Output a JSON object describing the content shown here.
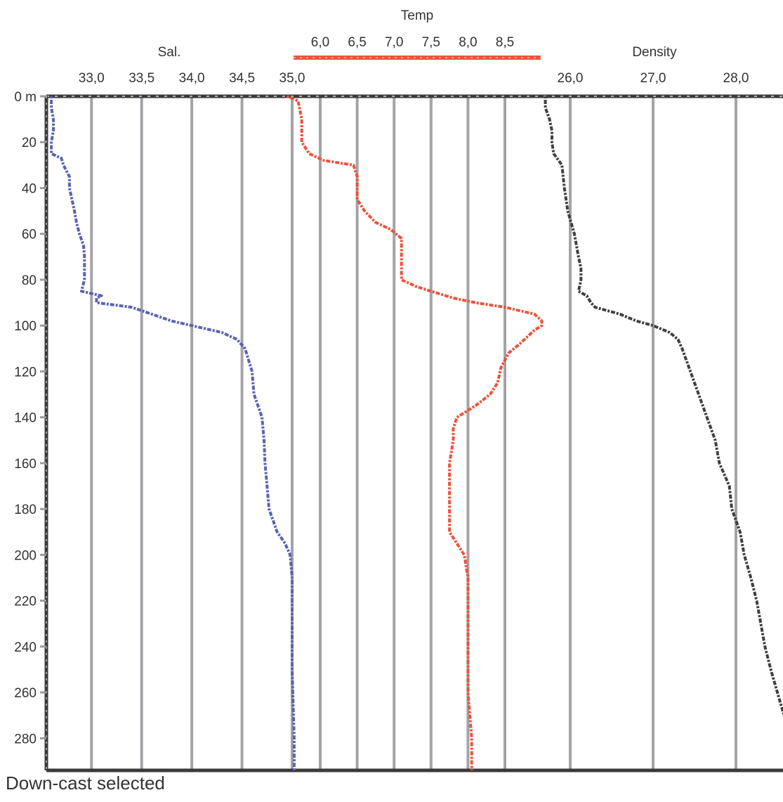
{
  "chart_data": {
    "type": "line",
    "description_status": "ctd-profile",
    "y_axis": {
      "range": [
        0,
        294
      ],
      "ticks": [
        0,
        20,
        40,
        60,
        80,
        100,
        120,
        140,
        160,
        180,
        200,
        220,
        240,
        260,
        280
      ],
      "first_tick_label": "0 m",
      "inverted": true
    },
    "axes": {
      "salinity": {
        "title": "Sal.",
        "range": [
          32.55,
          35.0
        ],
        "ticks": [
          "33,0",
          "33,5",
          "34,0",
          "34,5",
          "35,0"
        ],
        "tick_values": [
          33.0,
          33.5,
          34.0,
          34.5,
          35.0
        ]
      },
      "temperature": {
        "title": "Temp",
        "range": [
          5.6,
          9.05
        ],
        "ticks": [
          "6,0",
          "6,5",
          "7,0",
          "7,5",
          "8,0",
          "8,5"
        ],
        "tick_values": [
          6.0,
          6.5,
          7.0,
          7.5,
          8.0,
          8.5
        ]
      },
      "density": {
        "title": "Density",
        "range": [
          25.3,
          28.6
        ],
        "ticks": [
          "26,0",
          "27,0",
          "28,0"
        ],
        "tick_values": [
          26.0,
          27.0,
          28.0
        ]
      }
    },
    "grid": true,
    "series": [
      {
        "key": "salinity",
        "color": "#5b63b0",
        "points": [
          [
            0,
            32.6
          ],
          [
            5,
            32.6
          ],
          [
            10,
            32.62
          ],
          [
            15,
            32.62
          ],
          [
            20,
            32.6
          ],
          [
            25,
            32.6
          ],
          [
            27,
            32.7
          ],
          [
            30,
            32.72
          ],
          [
            35,
            32.78
          ],
          [
            40,
            32.78
          ],
          [
            50,
            32.83
          ],
          [
            55,
            32.85
          ],
          [
            60,
            32.88
          ],
          [
            65,
            32.92
          ],
          [
            70,
            32.93
          ],
          [
            75,
            32.93
          ],
          [
            80,
            32.93
          ],
          [
            85,
            32.9
          ],
          [
            87,
            33.1
          ],
          [
            88,
            33.05
          ],
          [
            90,
            33.05
          ],
          [
            92,
            33.4
          ],
          [
            95,
            33.6
          ],
          [
            98,
            33.8
          ],
          [
            100,
            34.0
          ],
          [
            103,
            34.3
          ],
          [
            106,
            34.45
          ],
          [
            110,
            34.53
          ],
          [
            120,
            34.6
          ],
          [
            130,
            34.62
          ],
          [
            140,
            34.7
          ],
          [
            150,
            34.72
          ],
          [
            160,
            34.73
          ],
          [
            170,
            34.75
          ],
          [
            180,
            34.77
          ],
          [
            190,
            34.85
          ],
          [
            195,
            34.93
          ],
          [
            200,
            34.98
          ],
          [
            210,
            35.0
          ],
          [
            220,
            35.0
          ],
          [
            250,
            35.0
          ],
          [
            280,
            35.02
          ],
          [
            294,
            35.02
          ]
        ]
      },
      {
        "key": "temperature",
        "color": "#e8553e",
        "points": [
          [
            0,
            5.55
          ],
          [
            2,
            5.7
          ],
          [
            10,
            5.75
          ],
          [
            20,
            5.75
          ],
          [
            25,
            5.85
          ],
          [
            28,
            6.05
          ],
          [
            30,
            6.45
          ],
          [
            35,
            6.5
          ],
          [
            45,
            6.5
          ],
          [
            50,
            6.6
          ],
          [
            55,
            6.75
          ],
          [
            58,
            6.95
          ],
          [
            62,
            7.1
          ],
          [
            70,
            7.1
          ],
          [
            80,
            7.1
          ],
          [
            83,
            7.3
          ],
          [
            85,
            7.5
          ],
          [
            88,
            7.8
          ],
          [
            90,
            8.1
          ],
          [
            92,
            8.5
          ],
          [
            95,
            8.9
          ],
          [
            98,
            9.0
          ],
          [
            100,
            9.0
          ],
          [
            102,
            8.9
          ],
          [
            105,
            8.8
          ],
          [
            108,
            8.7
          ],
          [
            112,
            8.55
          ],
          [
            118,
            8.45
          ],
          [
            125,
            8.4
          ],
          [
            130,
            8.3
          ],
          [
            135,
            8.1
          ],
          [
            140,
            7.85
          ],
          [
            145,
            7.8
          ],
          [
            150,
            7.8
          ],
          [
            160,
            7.75
          ],
          [
            170,
            7.75
          ],
          [
            180,
            7.75
          ],
          [
            190,
            7.75
          ],
          [
            195,
            7.85
          ],
          [
            200,
            7.95
          ],
          [
            210,
            8.0
          ],
          [
            220,
            8.0
          ],
          [
            240,
            8.0
          ],
          [
            260,
            8.0
          ],
          [
            280,
            8.05
          ],
          [
            294,
            8.05
          ]
        ]
      },
      {
        "key": "density",
        "color": "#404040",
        "points": [
          [
            0,
            25.7
          ],
          [
            5,
            25.7
          ],
          [
            10,
            25.75
          ],
          [
            15,
            25.78
          ],
          [
            20,
            25.78
          ],
          [
            25,
            25.8
          ],
          [
            30,
            25.9
          ],
          [
            40,
            25.93
          ],
          [
            50,
            25.97
          ],
          [
            60,
            26.05
          ],
          [
            70,
            26.1
          ],
          [
            75,
            26.13
          ],
          [
            80,
            26.13
          ],
          [
            85,
            26.1
          ],
          [
            87,
            26.2
          ],
          [
            90,
            26.25
          ],
          [
            92,
            26.3
          ],
          [
            95,
            26.6
          ],
          [
            98,
            26.8
          ],
          [
            100,
            27.0
          ],
          [
            103,
            27.2
          ],
          [
            106,
            27.3
          ],
          [
            110,
            27.35
          ],
          [
            120,
            27.45
          ],
          [
            130,
            27.55
          ],
          [
            140,
            27.65
          ],
          [
            150,
            27.75
          ],
          [
            160,
            27.8
          ],
          [
            170,
            27.92
          ],
          [
            180,
            27.95
          ],
          [
            190,
            28.05
          ],
          [
            200,
            28.1
          ],
          [
            210,
            28.18
          ],
          [
            220,
            28.25
          ],
          [
            230,
            28.3
          ],
          [
            240,
            28.35
          ],
          [
            250,
            28.42
          ],
          [
            260,
            28.5
          ],
          [
            270,
            28.58
          ],
          [
            280,
            28.63
          ],
          [
            294,
            28.7
          ]
        ]
      }
    ]
  },
  "status": {
    "text": "Down-cast selected"
  }
}
